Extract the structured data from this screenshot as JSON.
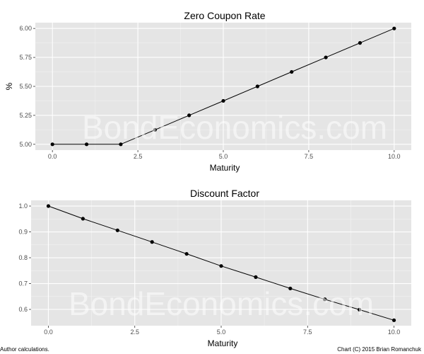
{
  "colors": {
    "panel_background": "#e5e5e5",
    "grid_major": "#ffffff",
    "grid_minor": "#f2f2f2",
    "line": "#000000",
    "point": "#000000",
    "tick_text": "#4d4d4d"
  },
  "watermark": "BondEconomics.com",
  "footer": {
    "left": "Author calculations.",
    "right": "Chart (C) 2015 Brian Romanchuk"
  },
  "chart_data": [
    {
      "type": "line",
      "title": "Zero Coupon Rate",
      "xlabel": "Maturity",
      "ylabel": "%",
      "x": [
        0,
        1,
        2,
        3,
        4,
        5,
        6,
        7,
        8,
        9,
        10
      ],
      "values": [
        5.0,
        5.0,
        5.0,
        5.125,
        5.25,
        5.375,
        5.5,
        5.625,
        5.75,
        5.875,
        6.0
      ],
      "xlim": [
        -0.5,
        10.5
      ],
      "ylim": [
        4.95,
        6.05
      ],
      "xticks": [
        0,
        2.5,
        5,
        7.5,
        10
      ],
      "xtick_labels": [
        "0.0",
        "2.5",
        "5.0",
        "7.5",
        "10.0"
      ],
      "yticks": [
        5.0,
        5.25,
        5.5,
        5.75,
        6.0
      ],
      "ytick_labels": [
        "5.00",
        "5.25",
        "5.50",
        "5.75",
        "6.00"
      ],
      "grid": true,
      "markers": true
    },
    {
      "type": "line",
      "title": "Discount Factor",
      "xlabel": "Maturity",
      "ylabel": "",
      "x": [
        0,
        1,
        2,
        3,
        4,
        5,
        6,
        7,
        8,
        9,
        10
      ],
      "values": [
        1.0,
        0.951,
        0.906,
        0.861,
        0.815,
        0.768,
        0.725,
        0.681,
        0.639,
        0.599,
        0.558
      ],
      "xlim": [
        -0.5,
        10.5
      ],
      "ylim": [
        0.537,
        1.022
      ],
      "xticks": [
        0,
        2.5,
        5,
        7.5,
        10
      ],
      "xtick_labels": [
        "0.0",
        "2.5",
        "5.0",
        "7.5",
        "10.0"
      ],
      "yticks": [
        0.6,
        0.7,
        0.8,
        0.9,
        1.0
      ],
      "ytick_labels": [
        "0.6",
        "0.7",
        "0.8",
        "0.9",
        "1.0"
      ],
      "grid": true,
      "markers": true
    }
  ]
}
